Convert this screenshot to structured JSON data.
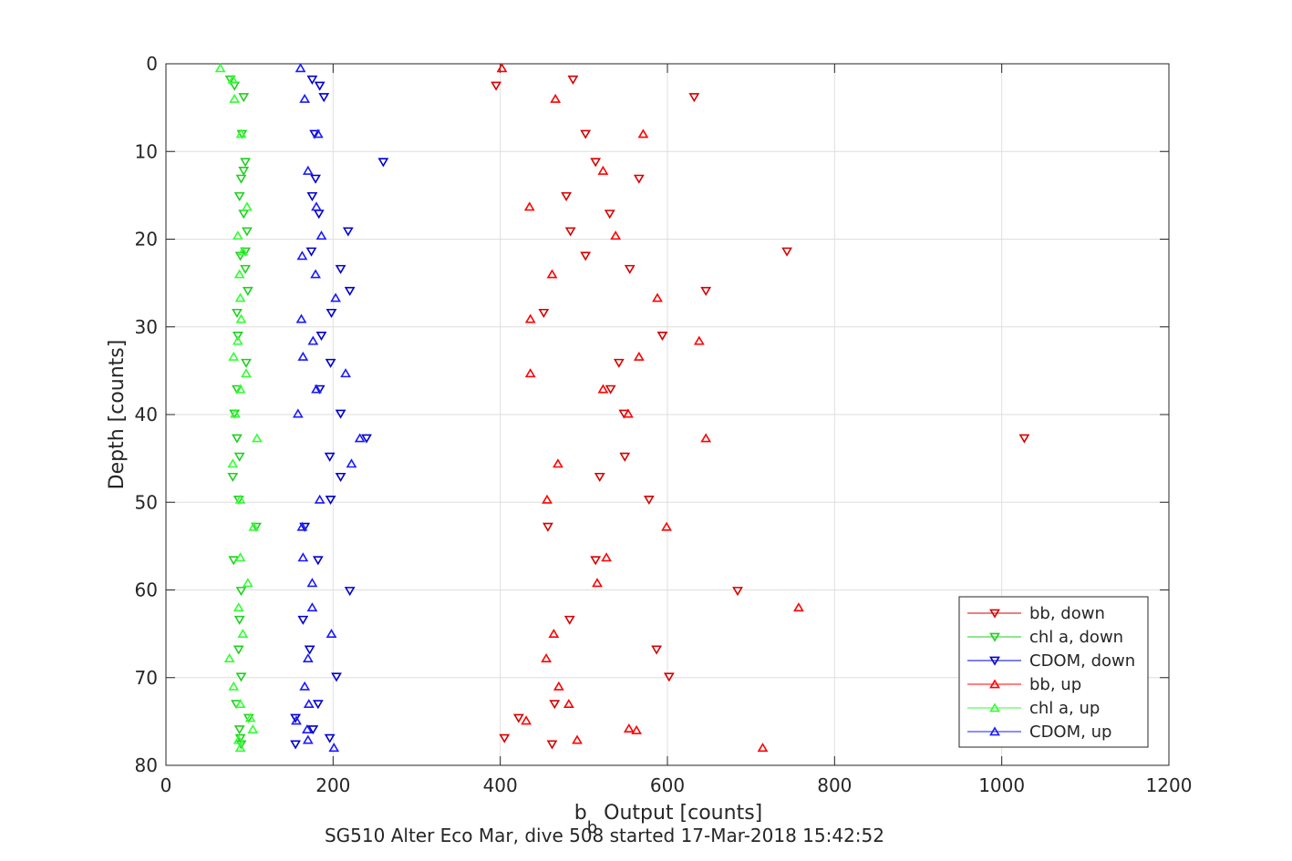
{
  "chart_data": {
    "type": "scatter",
    "title": "",
    "caption": "SG510 Alter Eco Mar, dive 508 started 17-Mar-2018 15:42:52",
    "xlabel": {
      "base": "b",
      "subscript": "b",
      "rest": " Output [counts]"
    },
    "ylabel": "Depth [counts]",
    "xlim": [
      0,
      1200
    ],
    "ylim": [
      0,
      80
    ],
    "y_reversed": true,
    "grid": true,
    "legend_position": "bottom-right",
    "xticks": [
      0,
      200,
      400,
      600,
      800,
      1000,
      1200
    ],
    "yticks": [
      0,
      10,
      20,
      30,
      40,
      50,
      60,
      70,
      80
    ],
    "series": [
      {
        "name": "bb, down",
        "marker": "triangle-down",
        "color": "#d40000",
        "points": [
          [
            487,
            1.8
          ],
          [
            395,
            2.5
          ],
          [
            632,
            3.8
          ],
          [
            502,
            8
          ],
          [
            514,
            11.2
          ],
          [
            566,
            13.1
          ],
          [
            479,
            15.1
          ],
          [
            531,
            17.1
          ],
          [
            484,
            19.1
          ],
          [
            743,
            21.4
          ],
          [
            502,
            21.9
          ],
          [
            555,
            23.4
          ],
          [
            646,
            25.9
          ],
          [
            452,
            28.4
          ],
          [
            594,
            31.0
          ],
          [
            542,
            34.1
          ],
          [
            532,
            37.1
          ],
          [
            548,
            39.9
          ],
          [
            1027,
            42.7
          ],
          [
            549,
            44.8
          ],
          [
            519,
            47.1
          ],
          [
            578,
            49.7
          ],
          [
            457,
            52.8
          ],
          [
            514,
            56.6
          ],
          [
            684,
            60.1
          ],
          [
            483,
            63.4
          ],
          [
            587,
            66.8
          ],
          [
            602,
            69.9
          ],
          [
            465,
            73.0
          ],
          [
            422,
            74.6
          ],
          [
            405,
            76.9
          ],
          [
            462,
            77.6
          ]
        ]
      },
      {
        "name": "chl a, down",
        "marker": "triangle-down",
        "color": "#1fd01f",
        "points": [
          [
            77,
            1.8
          ],
          [
            82,
            2.5
          ],
          [
            93,
            3.8
          ],
          [
            91,
            8
          ],
          [
            95,
            11.2
          ],
          [
            93,
            12.2
          ],
          [
            90,
            13.1
          ],
          [
            88,
            15.1
          ],
          [
            93,
            17.1
          ],
          [
            97,
            19.1
          ],
          [
            95,
            21.4
          ],
          [
            89,
            21.9
          ],
          [
            95,
            23.4
          ],
          [
            98,
            25.9
          ],
          [
            85,
            28.4
          ],
          [
            86,
            31.0
          ],
          [
            96,
            34.1
          ],
          [
            85,
            37.1
          ],
          [
            82,
            39.9
          ],
          [
            85,
            42.7
          ],
          [
            88,
            44.8
          ],
          [
            80,
            47.1
          ],
          [
            87,
            49.7
          ],
          [
            108,
            52.8
          ],
          [
            81,
            56.6
          ],
          [
            90,
            60.1
          ],
          [
            88,
            63.4
          ],
          [
            87,
            66.8
          ],
          [
            90,
            69.9
          ],
          [
            84,
            73.0
          ],
          [
            99,
            74.6
          ],
          [
            88,
            75.9
          ],
          [
            89,
            76.9
          ],
          [
            90,
            77.6
          ]
        ]
      },
      {
        "name": "CDOM, down",
        "marker": "triangle-down",
        "color": "#0000cc",
        "points": [
          [
            175,
            1.8
          ],
          [
            184,
            2.5
          ],
          [
            189,
            3.8
          ],
          [
            178,
            8
          ],
          [
            260,
            11.2
          ],
          [
            179,
            13.1
          ],
          [
            175,
            15.1
          ],
          [
            183,
            17.1
          ],
          [
            218,
            19.1
          ],
          [
            174,
            21.4
          ],
          [
            209,
            23.4
          ],
          [
            220,
            25.9
          ],
          [
            198,
            28.4
          ],
          [
            186,
            31.0
          ],
          [
            197,
            34.1
          ],
          [
            184,
            37.1
          ],
          [
            209,
            39.9
          ],
          [
            240,
            42.7
          ],
          [
            196,
            44.8
          ],
          [
            209,
            47.1
          ],
          [
            197,
            49.7
          ],
          [
            166,
            52.8
          ],
          [
            182,
            56.6
          ],
          [
            220,
            60.1
          ],
          [
            164,
            63.4
          ],
          [
            172,
            66.8
          ],
          [
            204,
            69.9
          ],
          [
            182,
            73.0
          ],
          [
            155,
            74.6
          ],
          [
            176,
            75.9
          ],
          [
            196,
            76.9
          ],
          [
            155,
            77.6
          ]
        ]
      },
      {
        "name": "bb, up",
        "marker": "triangle-up",
        "color": "#ff0000",
        "points": [
          [
            402,
            0.5
          ],
          [
            466,
            4.0
          ],
          [
            571,
            8
          ],
          [
            523,
            12.2
          ],
          [
            435,
            16.3
          ],
          [
            538,
            19.6
          ],
          [
            462,
            24.0
          ],
          [
            588,
            26.7
          ],
          [
            436,
            29.1
          ],
          [
            638,
            31.6
          ],
          [
            566,
            33.4
          ],
          [
            436,
            35.3
          ],
          [
            523,
            37.1
          ],
          [
            553,
            39.9
          ],
          [
            646,
            42.7
          ],
          [
            469,
            45.6
          ],
          [
            456,
            49.7
          ],
          [
            599,
            52.8
          ],
          [
            527,
            56.3
          ],
          [
            516,
            59.2
          ],
          [
            757,
            62.0
          ],
          [
            464,
            65.0
          ],
          [
            455,
            67.8
          ],
          [
            470,
            71.0
          ],
          [
            482,
            73.0
          ],
          [
            431,
            74.9
          ],
          [
            554,
            75.8
          ],
          [
            563,
            76.0
          ],
          [
            492,
            77.1
          ],
          [
            714,
            78.0
          ]
        ]
      },
      {
        "name": "chl a, up",
        "marker": "triangle-up",
        "color": "#33ff33",
        "points": [
          [
            65,
            0.5
          ],
          [
            80,
            1.8
          ],
          [
            82,
            4.0
          ],
          [
            90,
            8
          ],
          [
            97,
            16.3
          ],
          [
            86,
            19.6
          ],
          [
            92,
            21.4
          ],
          [
            88,
            24.0
          ],
          [
            89,
            26.7
          ],
          [
            90,
            29.1
          ],
          [
            86,
            31.6
          ],
          [
            81,
            33.4
          ],
          [
            96,
            35.3
          ],
          [
            89,
            37.1
          ],
          [
            83,
            39.9
          ],
          [
            109,
            42.7
          ],
          [
            80,
            45.6
          ],
          [
            89,
            49.7
          ],
          [
            105,
            52.8
          ],
          [
            89,
            56.3
          ],
          [
            98,
            59.2
          ],
          [
            87,
            62.0
          ],
          [
            92,
            65.0
          ],
          [
            76,
            67.8
          ],
          [
            81,
            71.0
          ],
          [
            89,
            73.0
          ],
          [
            101,
            74.6
          ],
          [
            104,
            75.9
          ],
          [
            87,
            77.1
          ],
          [
            89,
            78.0
          ]
        ]
      },
      {
        "name": "CDOM, up",
        "marker": "triangle-up",
        "color": "#1a1aff",
        "points": [
          [
            161,
            0.5
          ],
          [
            166,
            4.0
          ],
          [
            182,
            8
          ],
          [
            170,
            12.2
          ],
          [
            180,
            16.3
          ],
          [
            186,
            19.6
          ],
          [
            163,
            21.9
          ],
          [
            179,
            24.0
          ],
          [
            203,
            26.7
          ],
          [
            162,
            29.1
          ],
          [
            176,
            31.6
          ],
          [
            164,
            33.4
          ],
          [
            215,
            35.3
          ],
          [
            180,
            37.1
          ],
          [
            158,
            39.9
          ],
          [
            232,
            42.7
          ],
          [
            222,
            45.6
          ],
          [
            184,
            49.7
          ],
          [
            163,
            52.8
          ],
          [
            164,
            56.3
          ],
          [
            175,
            59.2
          ],
          [
            175,
            62.0
          ],
          [
            198,
            65.0
          ],
          [
            170,
            67.8
          ],
          [
            166,
            71.0
          ],
          [
            171,
            73.0
          ],
          [
            156,
            74.9
          ],
          [
            169,
            75.9
          ],
          [
            170,
            77.1
          ],
          [
            201,
            78.0
          ]
        ]
      }
    ]
  }
}
